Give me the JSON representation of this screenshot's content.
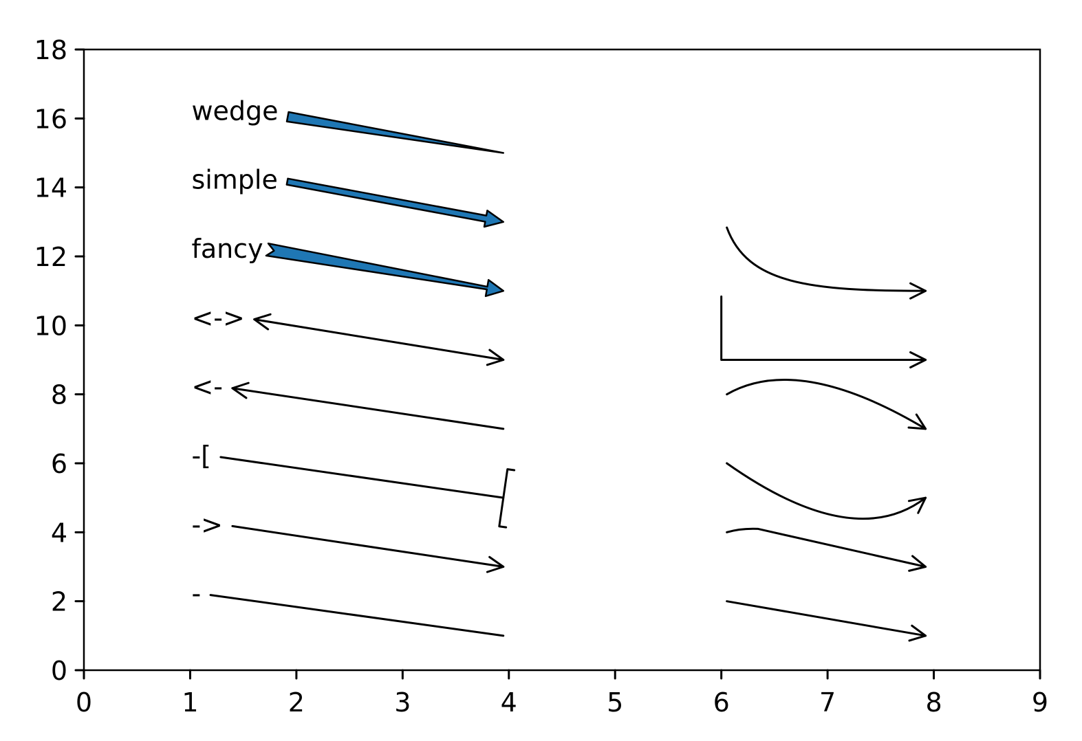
{
  "chart_data": {
    "type": "scatter",
    "title": "",
    "xlabel": "",
    "ylabel": "",
    "xlim": [
      0,
      9
    ],
    "ylim": [
      0,
      18
    ],
    "xticks": [
      "0",
      "1",
      "2",
      "3",
      "4",
      "5",
      "6",
      "7",
      "8",
      "9"
    ],
    "yticks": [
      "0",
      "2",
      "4",
      "6",
      "8",
      "10",
      "12",
      "14",
      "16",
      "18"
    ],
    "grid": false,
    "fill_color": "#1f77b4",
    "line_color": "#000000",
    "annotations": [
      {
        "label": "-",
        "text_xy": [
          1,
          2
        ],
        "from": [
          2,
          2
        ],
        "to": [
          4,
          1
        ],
        "style": "-"
      },
      {
        "label": "->",
        "text_xy": [
          1,
          4
        ],
        "from": [
          2,
          4
        ],
        "to": [
          4,
          3
        ],
        "style": "->"
      },
      {
        "label": "-[",
        "text_xy": [
          1,
          6
        ],
        "from": [
          2,
          6
        ],
        "to": [
          4,
          5
        ],
        "style": "-["
      },
      {
        "label": "<-",
        "text_xy": [
          1,
          8
        ],
        "from": [
          2,
          8
        ],
        "to": [
          4,
          7
        ],
        "style": "<-"
      },
      {
        "label": "<->",
        "text_xy": [
          1,
          10
        ],
        "from": [
          2,
          10
        ],
        "to": [
          4,
          9
        ],
        "style": "<->"
      },
      {
        "label": "fancy",
        "text_xy": [
          1,
          12
        ],
        "from": [
          2,
          12
        ],
        "to": [
          4,
          11
        ],
        "style": "fancy"
      },
      {
        "label": "simple",
        "text_xy": [
          1,
          14
        ],
        "from": [
          2,
          14
        ],
        "to": [
          4,
          13
        ],
        "style": "simple"
      },
      {
        "label": "wedge",
        "text_xy": [
          1,
          16
        ],
        "from": [
          2,
          16
        ],
        "to": [
          4,
          15
        ],
        "style": "wedge"
      }
    ],
    "connectors": [
      {
        "from": [
          6,
          2
        ],
        "to": [
          8,
          1
        ],
        "style": "arc3"
      },
      {
        "from": [
          6,
          4
        ],
        "to": [
          8,
          3
        ],
        "style": "angle3"
      },
      {
        "from": [
          6,
          6
        ],
        "to": [
          8,
          5
        ],
        "style": "arc3-rad-positive"
      },
      {
        "from": [
          6,
          8
        ],
        "to": [
          8,
          7
        ],
        "style": "arc3-rad-negative"
      },
      {
        "from": [
          6,
          10
        ],
        "to": [
          8,
          9
        ],
        "style": "angle"
      },
      {
        "from": [
          6,
          12
        ],
        "to": [
          8,
          11
        ],
        "style": "angle3-curve"
      }
    ]
  }
}
